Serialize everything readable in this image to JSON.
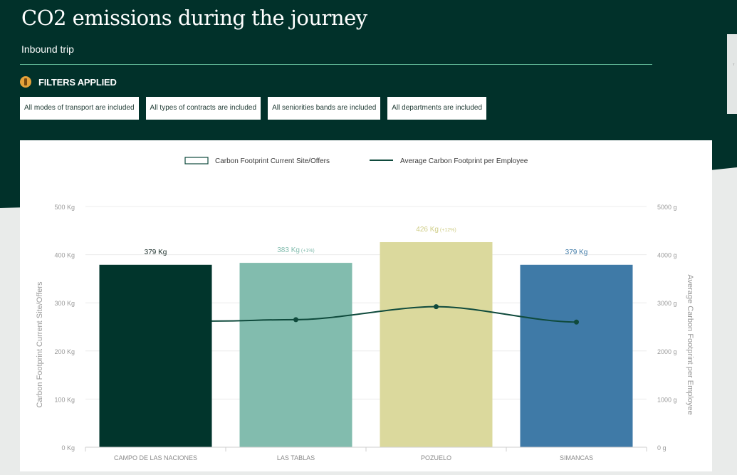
{
  "header": {
    "title": "CO2 emissions during the journey",
    "subtitle": "Inbound trip",
    "filters_label": "FILTERS APPLIED",
    "filter_icon": "filter-badge-icon"
  },
  "filters": [
    "All modes of transport are included",
    "All types of contracts are included",
    "All seniorities bands are included",
    "All departments are included"
  ],
  "colors": {
    "dark_bg": "#01312a",
    "accent_line": "#5fb595",
    "bar_1": "#01352c",
    "bar_2": "#82bcae",
    "bar_3": "#dbd99d",
    "bar_4": "#3f7aa7",
    "line": "#0f4a3c"
  },
  "chart_data": {
    "type": "bar",
    "legend": {
      "placement": "top",
      "entries": [
        "Carbon Footprint Current Site/Offers",
        "Average Carbon Footprint per Employee"
      ]
    },
    "categories": [
      "CAMPO DE LAS NACIONES",
      "LAS TABLAS",
      "POZUELO",
      "SIMANCAS"
    ],
    "series": [
      {
        "name": "Carbon Footprint Current Site/Offers",
        "type": "bar",
        "axis": "left",
        "values": [
          379,
          383,
          426,
          379
        ],
        "labels": [
          "379 Kg",
          "383 Kg",
          "426 Kg",
          "379 Kg"
        ],
        "label_notes": [
          "",
          "(+1%)",
          "(+12%)",
          ""
        ]
      },
      {
        "name": "Average Carbon Footprint per Employee",
        "type": "line",
        "axis": "right",
        "values": [
          2620,
          2650,
          2920,
          2600
        ],
        "markers": [
          false,
          true,
          true,
          true
        ]
      }
    ],
    "ylabel_left": "Carbon Footprint Current Site/Offers",
    "ylabel_right": "Average Carbon Footprint per Employee",
    "ylim_left": [
      0,
      500
    ],
    "ylim_right": [
      0,
      5000
    ],
    "yticks_left": [
      "0 Kg",
      "100 Kg",
      "200 Kg",
      "300 Kg",
      "400 Kg",
      "500 Kg"
    ],
    "yticks_right": [
      "0 g",
      "1000 g",
      "2000 g",
      "3000 g",
      "4000 g",
      "5000 g"
    ],
    "grid": true
  }
}
